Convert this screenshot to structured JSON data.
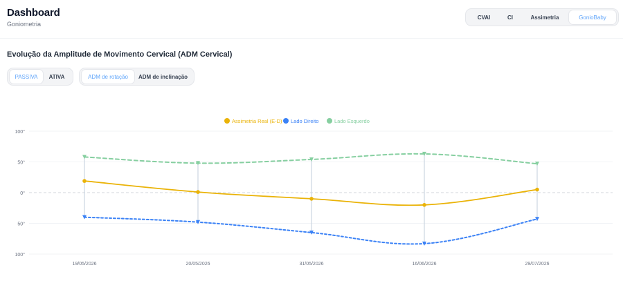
{
  "header": {
    "title": "Dashboard",
    "subtitle": "Goniometria",
    "tabs": [
      {
        "label": "CVAI",
        "active": false
      },
      {
        "label": "CI",
        "active": false
      },
      {
        "label": "Assimetria",
        "active": false
      },
      {
        "label": "GonioBaby",
        "active": true
      }
    ]
  },
  "section": {
    "title": "Evolução da Amplitude de Movimento Cervical (ADM Cervical)"
  },
  "filters": {
    "mode": [
      {
        "label": "PASSIVA",
        "active": true
      },
      {
        "label": "ATIVA",
        "active": false
      }
    ],
    "range": [
      {
        "label": "ADM de rotação",
        "active": true
      },
      {
        "label": "ADM de inclinação",
        "active": false
      }
    ]
  },
  "colors": {
    "accent": "#60a5fa",
    "asymmetry": "#eab308",
    "right": "#3b82f6",
    "left": "#86cfa0",
    "connector": "#cbd5e1"
  },
  "chart_data": {
    "type": "line",
    "categories": [
      "19/05/2026",
      "20/05/2026",
      "31/05/2026",
      "16/06/2026",
      "29/07/2026"
    ],
    "ylim": [
      -100,
      100
    ],
    "yticks": [
      {
        "value": 100,
        "label": "100°"
      },
      {
        "value": 50,
        "label": "50°"
      },
      {
        "value": 0,
        "label": "0°"
      },
      {
        "value": -50,
        "label": "50°"
      },
      {
        "value": -100,
        "label": "100°"
      }
    ],
    "legend_position": "top-center",
    "series": [
      {
        "name": "Assimetria Real (E-D)",
        "color": "#eab308",
        "style": "solid",
        "values": [
          19,
          1,
          -10,
          -20,
          5
        ]
      },
      {
        "name": "Lado Direito",
        "color": "#3b82f6",
        "style": "dotted",
        "values": [
          -40,
          -48,
          -65,
          -83,
          -43
        ]
      },
      {
        "name": "Lado Esquerdo",
        "color": "#86cfa0",
        "style": "dashed",
        "values": [
          58,
          48,
          54,
          63,
          47
        ]
      }
    ]
  }
}
